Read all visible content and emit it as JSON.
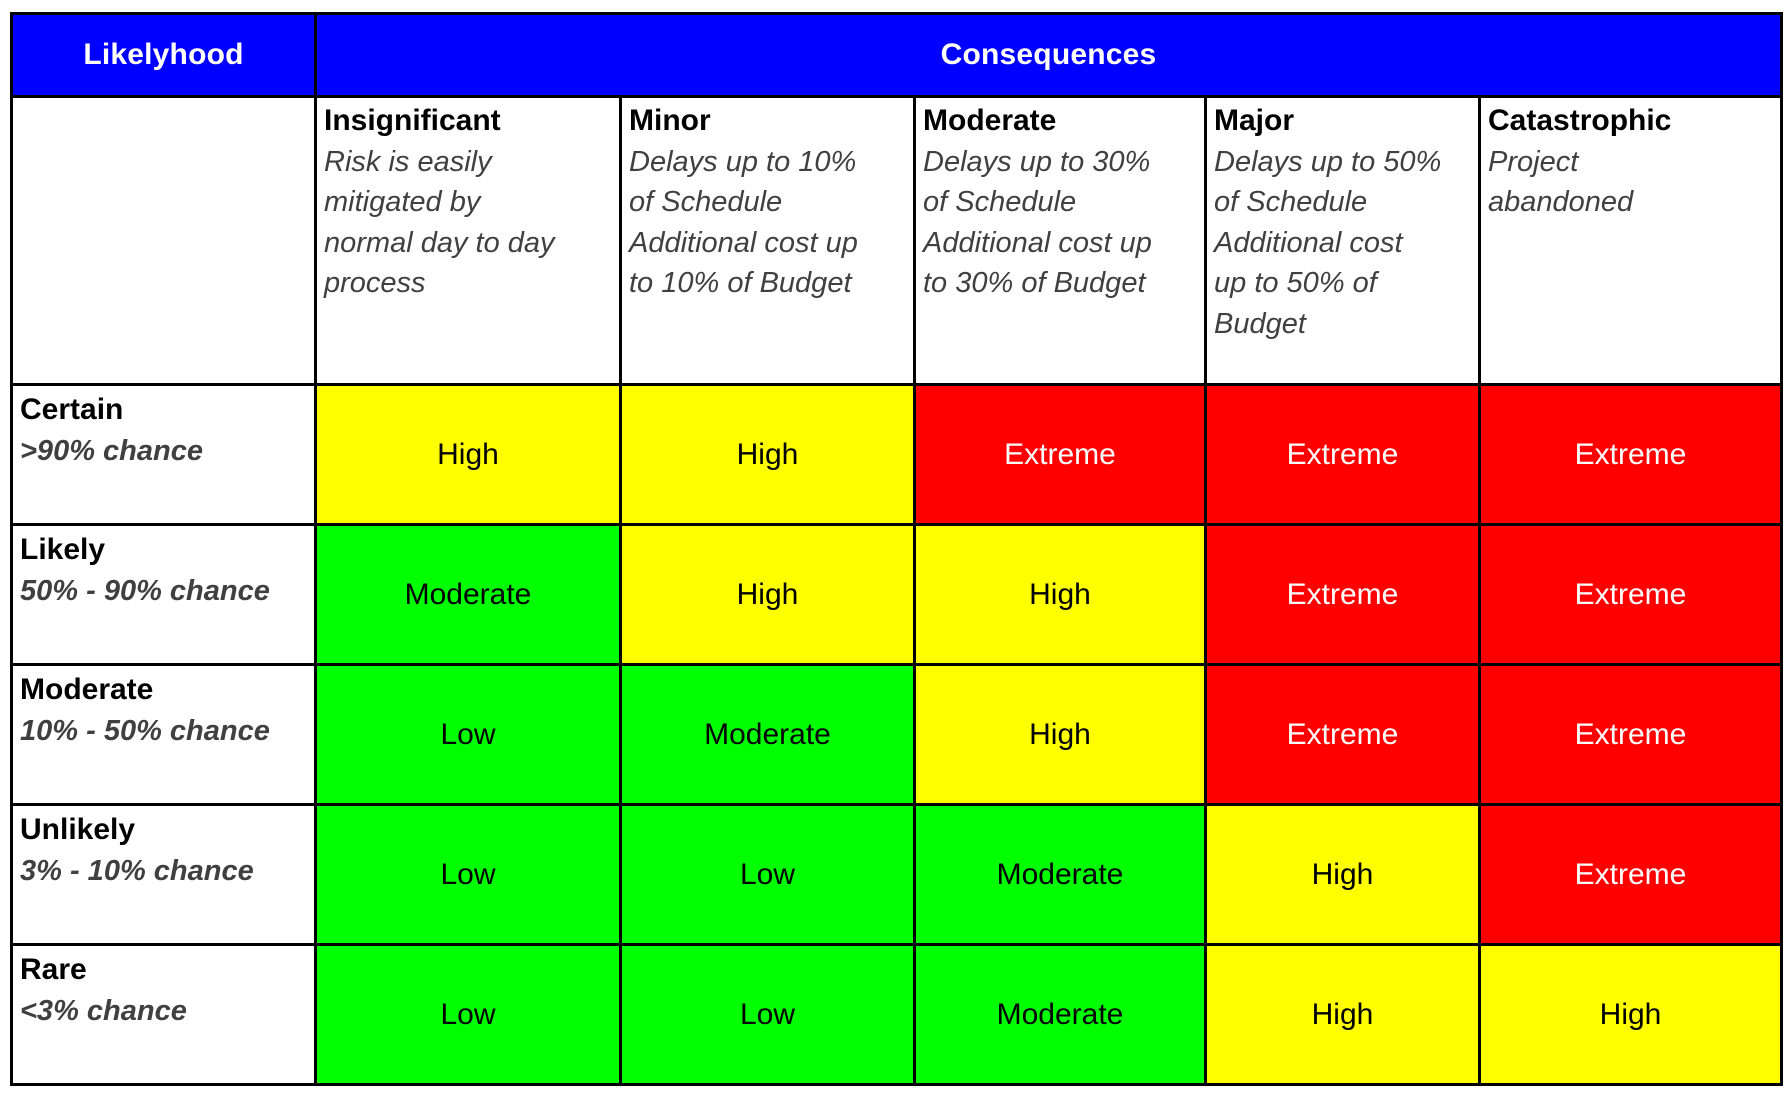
{
  "header": {
    "likelihood_label": "Likelyhood",
    "consequences_label": "Consequences"
  },
  "consequence_columns": [
    {
      "name": "Insignificant",
      "description": "Risk is easily\nmitigated by\nnormal day to day\nprocess"
    },
    {
      "name": "Minor",
      "description": "Delays up to 10%\nof Schedule\nAdditional cost up\nto 10% of Budget"
    },
    {
      "name": "Moderate",
      "description": "Delays up to 30%\nof Schedule\nAdditional cost up\nto 30% of Budget"
    },
    {
      "name": "Major",
      "description": "Delays up to 50%\nof Schedule\nAdditional cost\nup to 50% of\nBudget"
    },
    {
      "name": "Catastrophic",
      "description": "Project\nabandoned"
    }
  ],
  "likelihood_rows": [
    {
      "name": "Certain",
      "range": ">90% chance",
      "cells": [
        {
          "label": "High",
          "level": "high"
        },
        {
          "label": "High",
          "level": "high"
        },
        {
          "label": "Extreme",
          "level": "extreme"
        },
        {
          "label": "Extreme",
          "level": "extreme"
        },
        {
          "label": "Extreme",
          "level": "extreme"
        }
      ]
    },
    {
      "name": "Likely",
      "range": "50% - 90% chance",
      "cells": [
        {
          "label": "Moderate",
          "level": "moderate"
        },
        {
          "label": "High",
          "level": "high"
        },
        {
          "label": "High",
          "level": "high"
        },
        {
          "label": "Extreme",
          "level": "extreme"
        },
        {
          "label": "Extreme",
          "level": "extreme"
        }
      ]
    },
    {
      "name": "Moderate",
      "range": "10% - 50% chance",
      "cells": [
        {
          "label": "Low",
          "level": "low"
        },
        {
          "label": "Moderate",
          "level": "moderate"
        },
        {
          "label": "High",
          "level": "high"
        },
        {
          "label": "Extreme",
          "level": "extreme"
        },
        {
          "label": "Extreme",
          "level": "extreme"
        }
      ]
    },
    {
      "name": "Unlikely",
      "range": "3% - 10% chance",
      "cells": [
        {
          "label": "Low",
          "level": "low"
        },
        {
          "label": "Low",
          "level": "low"
        },
        {
          "label": "Moderate",
          "level": "moderate"
        },
        {
          "label": "High",
          "level": "high"
        },
        {
          "label": "Extreme",
          "level": "extreme"
        }
      ]
    },
    {
      "name": "Rare",
      "range": "<3% chance",
      "cells": [
        {
          "label": "Low",
          "level": "low"
        },
        {
          "label": "Low",
          "level": "low"
        },
        {
          "label": "Moderate",
          "level": "moderate"
        },
        {
          "label": "High",
          "level": "high"
        },
        {
          "label": "High",
          "level": "high"
        }
      ]
    }
  ],
  "colors": {
    "header_bg": "#0000FF",
    "header_text": "#FFFFFF",
    "grid_border": "#000000",
    "level_low_bg": "#00FF00",
    "level_moderate_bg": "#00FF00",
    "level_high_bg": "#FFFF00",
    "level_extreme_bg": "#FF0000",
    "extreme_text": "#FFFFFF",
    "cell_text": "#000000",
    "description_text": "#404040"
  }
}
